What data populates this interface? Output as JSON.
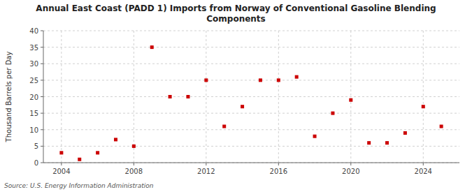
{
  "chart_data": {
    "type": "scatter",
    "title": "Annual East Coast (PADD 1) Imports from Norway of Conventional Gasoline Blending\nComponents",
    "y_label": "Thousand Barrels per Day",
    "annotations": [
      "Source: U.S. Energy Information Administration"
    ],
    "x": [
      2004,
      2005,
      2006,
      2007,
      2008,
      2009,
      2010,
      2011,
      2012,
      2013,
      2014,
      2015,
      2016,
      2017,
      2018,
      2019,
      2020,
      2021,
      2022,
      2023,
      2024,
      2025
    ],
    "values": [
      3,
      1,
      3,
      7,
      5,
      35,
      20,
      20,
      25,
      11,
      17,
      25,
      25,
      26,
      8,
      15,
      19,
      6,
      6,
      9,
      17,
      11
    ],
    "color": "#cc0000",
    "marker": "square",
    "xlim": [
      2003.0,
      2026.0
    ],
    "ylim": [
      0,
      40
    ],
    "xticks": [
      2004,
      2008,
      2012,
      2016,
      2020,
      2024
    ],
    "yticks": [
      0,
      5,
      10,
      15,
      20,
      25,
      30,
      35,
      40
    ],
    "grid": true
  }
}
